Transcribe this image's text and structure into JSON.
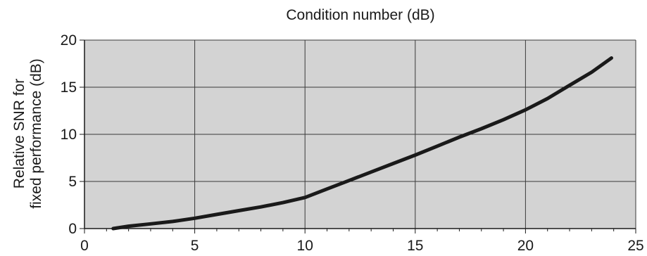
{
  "chart_data": {
    "type": "line",
    "title": "Condition number (dB)",
    "xlabel": "",
    "ylabel_lines": [
      "Relative SNR for",
      "fixed performance (dB)"
    ],
    "xlim": [
      0,
      25
    ],
    "ylim": [
      0,
      20
    ],
    "x_ticks": [
      0,
      5,
      10,
      15,
      20,
      25
    ],
    "y_ticks": [
      0,
      5,
      10,
      15,
      20
    ],
    "x_tick_labels": [
      "0",
      "5",
      "10",
      "15",
      "20",
      "25"
    ],
    "y_tick_labels": [
      "0",
      "5",
      "10",
      "15",
      "20"
    ],
    "grid": true,
    "legend": "none",
    "colors": {
      "plot_background": "#d3d3d3",
      "line": "#1a1a1a",
      "grid": "#3a3a3a"
    },
    "series": [
      {
        "x": [
          1.3,
          2,
          3,
          4,
          5,
          6,
          7,
          8,
          9,
          10,
          11,
          12,
          13,
          14,
          15,
          16,
          17,
          18,
          19,
          20,
          21,
          22,
          23,
          23.9
        ],
        "y": [
          0.0,
          0.25,
          0.5,
          0.75,
          1.1,
          1.5,
          1.9,
          2.3,
          2.75,
          3.3,
          4.2,
          5.1,
          6.0,
          6.9,
          7.8,
          8.75,
          9.7,
          10.6,
          11.55,
          12.6,
          13.8,
          15.2,
          16.6,
          18.1
        ]
      }
    ]
  }
}
